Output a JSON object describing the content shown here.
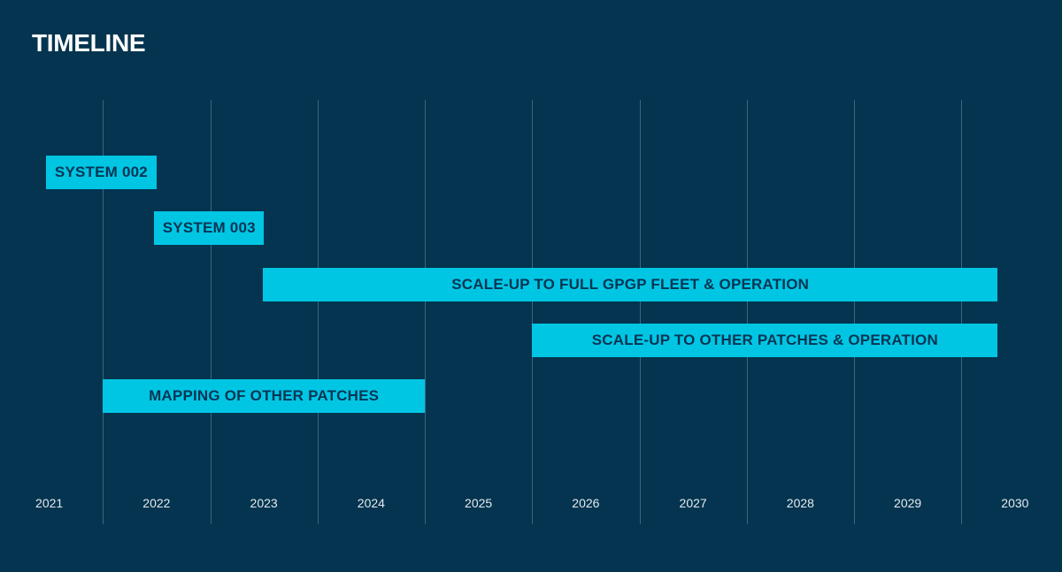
{
  "page": {
    "title": "TIMELINE"
  },
  "colors": {
    "background": "#04344f",
    "bar_fill": "#00c6e4",
    "bar_text": "#073553",
    "gridline": "rgba(173,207,231,0.32)",
    "axis_label": "#e4ebf1",
    "title": "#ffffff"
  },
  "chart_data": {
    "type": "gantt",
    "title": "TIMELINE",
    "x_axis": {
      "min": 2021,
      "max": 2031,
      "tick_labels": [
        "2021",
        "2022",
        "2023",
        "2024",
        "2025",
        "2026",
        "2027",
        "2028",
        "2029",
        "2030"
      ],
      "gridline_years": [
        2022,
        2023,
        2024,
        2025,
        2026,
        2027,
        2028,
        2029,
        2030
      ],
      "grid": "vertical-only",
      "tick_position": "centered-under-year-interval"
    },
    "tasks": [
      {
        "label": "SYSTEM 002",
        "start": 2021.47,
        "end": 2022.5
      },
      {
        "label": "SYSTEM 003",
        "start": 2022.48,
        "end": 2023.5
      },
      {
        "label": "SCALE-UP TO FULL GPGP FLEET & OPERATION",
        "start": 2023.49,
        "end": 2030.34
      },
      {
        "label": "SCALE-UP TO OTHER PATCHES & OPERATION",
        "start": 2026.0,
        "end": 2030.34
      },
      {
        "label": "MAPPING OF OTHER PATCHES",
        "start": 2022.0,
        "end": 2025.0
      }
    ]
  }
}
